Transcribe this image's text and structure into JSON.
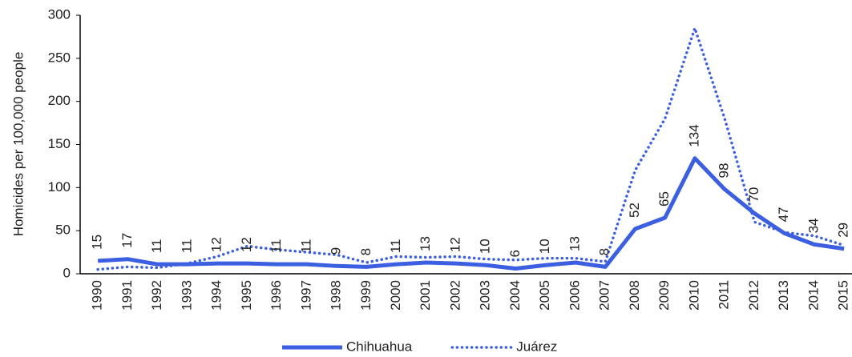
{
  "chart_data": {
    "type": "line",
    "y_label": "Homicides per 100,000 people",
    "categories": [
      "1990",
      "1991",
      "1992",
      "1993",
      "1994",
      "1995",
      "1996",
      "1997",
      "1998",
      "1999",
      "2000",
      "2001",
      "2002",
      "2003",
      "2004",
      "2005",
      "2006",
      "2007",
      "2008",
      "2009",
      "2010",
      "2011",
      "2012",
      "2013",
      "2014",
      "2015"
    ],
    "series": [
      {
        "name": "Chihuahua",
        "color": "#3b5fe0",
        "style": "solid",
        "data_labels": true,
        "values": [
          15,
          17,
          11,
          11,
          12,
          12,
          11,
          11,
          9,
          8,
          11,
          13,
          12,
          10,
          6,
          10,
          13,
          8,
          52,
          65,
          134,
          98,
          70,
          47,
          34,
          29
        ]
      },
      {
        "name": "Juárez",
        "color": "#3b5fe0",
        "style": "dotted",
        "data_labels": false,
        "values": [
          5,
          8,
          7,
          12,
          20,
          32,
          28,
          25,
          22,
          13,
          20,
          19,
          20,
          17,
          16,
          18,
          18,
          14,
          120,
          180,
          285,
          180,
          60,
          48,
          44,
          33
        ]
      }
    ],
    "ylim": [
      0,
      300
    ],
    "yticks": [
      0,
      50,
      100,
      150,
      200,
      250,
      300
    ],
    "grid": false
  }
}
